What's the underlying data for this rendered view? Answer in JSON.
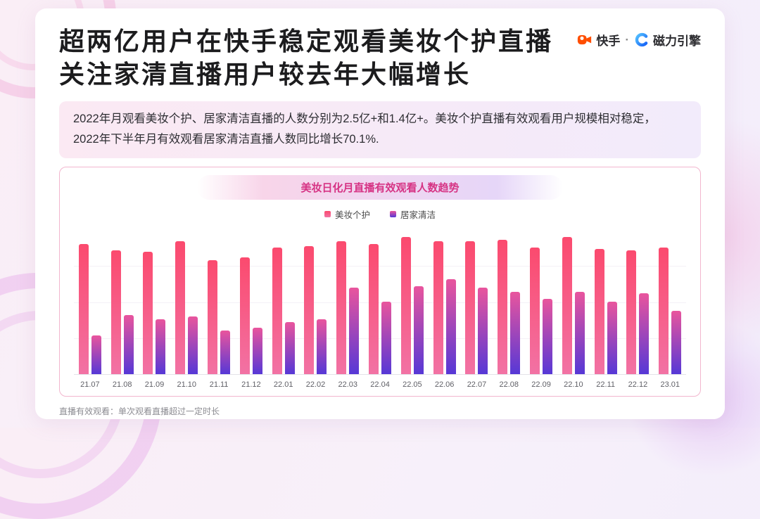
{
  "header": {
    "title_line1": "超两亿用户在快手稳定观看美妆个护直播",
    "title_line2": "关注家清直播用户较去年大幅增长",
    "brand": {
      "kuaishou_label": "快手",
      "separator": "·",
      "cili_label": "磁力引擎",
      "kuaishou_color": "#FF4E00",
      "cili_color": "#1E7DF7"
    }
  },
  "summary": {
    "line1": "2022年月观看美妆个护、居家清洁直播的人数分别为2.5亿+和1.4亿+。美妆个护直播有效观看用户规模相对稳定，",
    "line2": "2022年下半年月有效观看居家清洁直播人数同比增长70.1%."
  },
  "chart_data": {
    "type": "bar",
    "title": "美妆日化月直播有效观看人数趋势",
    "categories": [
      "21.07",
      "21.08",
      "21.09",
      "21.10",
      "21.11",
      "21.12",
      "22.01",
      "22.02",
      "22.03",
      "22.04",
      "22.05",
      "22.06",
      "22.07",
      "22.08",
      "22.09",
      "22.10",
      "22.11",
      "22.12",
      "23.01"
    ],
    "series": [
      {
        "name": "美妆个护",
        "color_top": "#FB4A6E",
        "color_bottom": "#F272A4",
        "values": [
          90,
          86,
          85,
          92,
          79,
          81,
          88,
          89,
          92,
          90,
          95,
          92,
          92,
          93,
          88,
          95,
          87,
          86,
          88
        ]
      },
      {
        "name": "居家清洁",
        "color_top": "#E9559D",
        "color_bottom": "#5638D6",
        "values": [
          27,
          41,
          38,
          40,
          30,
          32,
          36,
          38,
          60,
          50,
          61,
          66,
          60,
          57,
          52,
          57,
          50,
          56,
          44
        ]
      }
    ],
    "ylabel": "",
    "xlabel": "",
    "ylim": [
      0,
      100
    ],
    "unit": "relative height % (no numeric axis shown)",
    "grid": true,
    "legend_position": "top"
  },
  "footnote": "直播有效观看：单次观看直播超过一定时长"
}
